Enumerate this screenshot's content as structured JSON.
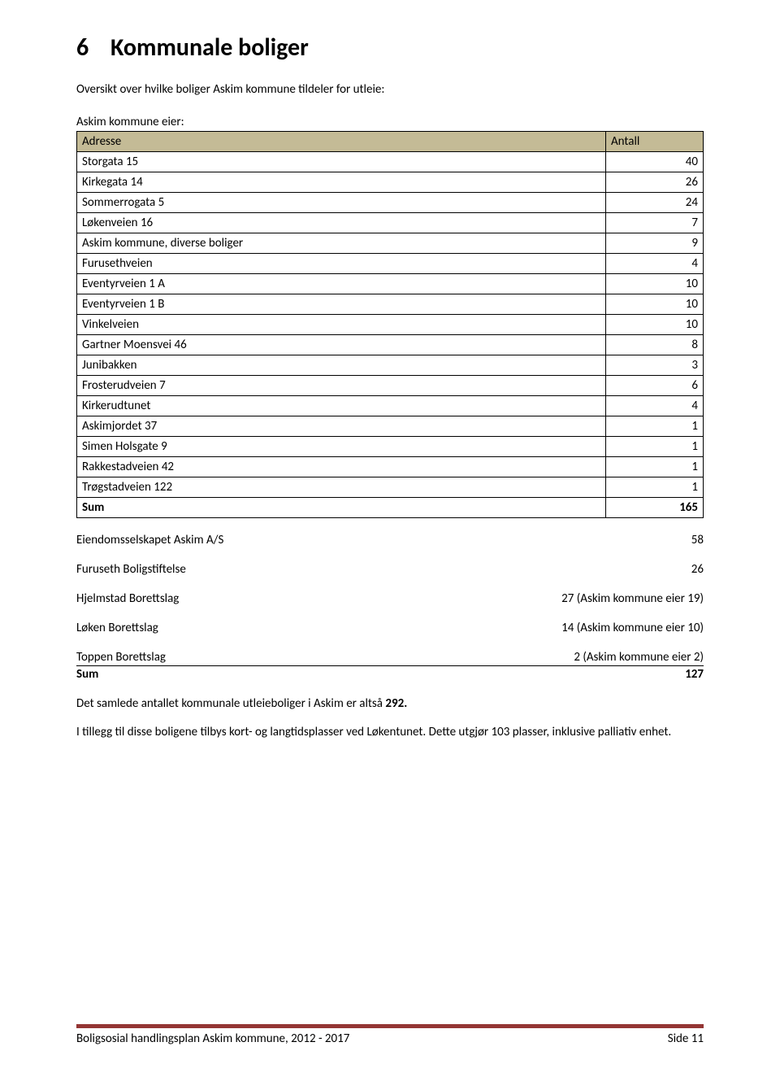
{
  "heading_number": "6",
  "heading_text": "Kommunale boliger",
  "intro": "Oversikt over hvilke boliger Askim kommune tildeler for utleie:",
  "subhead": "Askim kommune eier:",
  "table": {
    "header_bg": "#c4bb96",
    "border_color": "#000000",
    "columns": [
      "Adresse",
      "Antall"
    ],
    "rows": [
      [
        "Storgata 15",
        "40"
      ],
      [
        "Kirkegata 14",
        "26"
      ],
      [
        "Sommerrogata 5",
        "24"
      ],
      [
        "Løkenveien 16",
        "7"
      ],
      [
        "Askim kommune, diverse boliger",
        "9"
      ],
      [
        "Furusethveien",
        "4"
      ],
      [
        "Eventyrveien 1 A",
        "10"
      ],
      [
        "Eventyrveien 1 B",
        "10"
      ],
      [
        "Vinkelveien",
        "10"
      ],
      [
        "Gartner Moensvei 46",
        "8"
      ],
      [
        "Junibakken",
        "3"
      ],
      [
        "Frosterudveien 7",
        "6"
      ],
      [
        "Kirkerudtunet",
        "4"
      ],
      [
        "Askimjordet 37",
        "1"
      ],
      [
        "Simen Holsgate 9",
        "1"
      ],
      [
        "Rakkestadveien 42",
        "1"
      ],
      [
        "Trøgstadveien 122",
        "1"
      ]
    ],
    "sum_label": "Sum",
    "sum_value": "165"
  },
  "pairs": [
    {
      "label": "Eiendomsselskapet Askim A/S",
      "value": "58"
    },
    {
      "label": "Furuseth Boligstiftelse",
      "value": "26"
    },
    {
      "label": "Hjelmstad Borettslag",
      "value": "27 (Askim kommune eier 19)"
    },
    {
      "label": "Løken Borettslag",
      "value": "14 (Askim kommune eier 10)"
    }
  ],
  "toppen": {
    "label": "Toppen Borettslag",
    "value": "2 (Askim kommune eier 2)"
  },
  "sum2": {
    "label": "Sum",
    "value": "127"
  },
  "para1_text": "Det samlede antallet kommunale utleieboliger i Askim er altså ",
  "para1_bold": "292.",
  "para2": "I tillegg til disse boligene tilbys kort- og langtidsplasser ved Løkentunet. Dette utgjør 103 plasser, inklusive palliativ enhet.",
  "footer": {
    "accent_color": "#943634",
    "left": "Boligsosial handlingsplan Askim kommune, 2012 - 2017",
    "right": "Side 11"
  }
}
